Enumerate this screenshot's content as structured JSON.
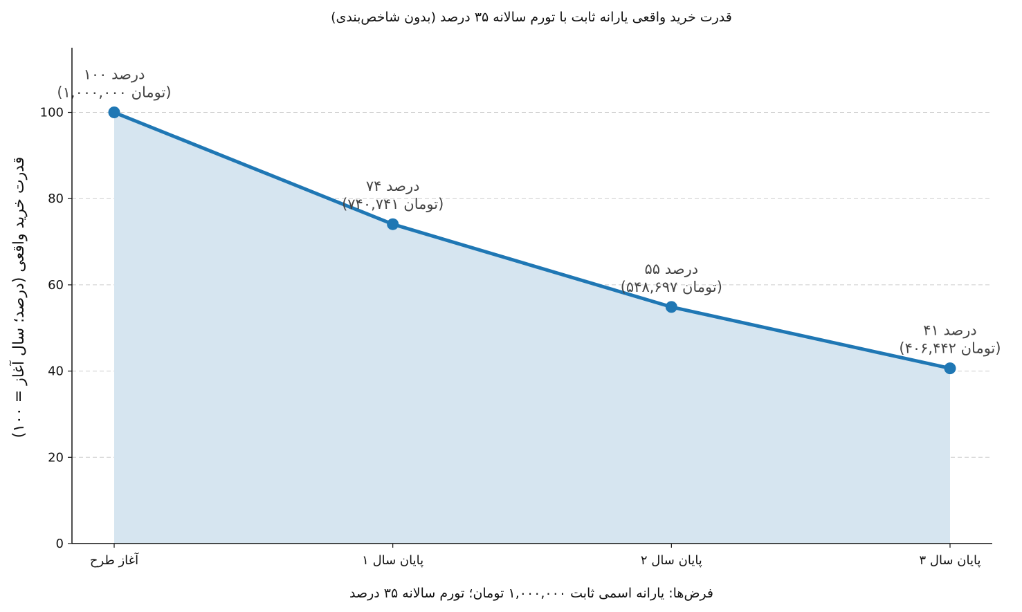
{
  "chart_data": {
    "type": "area",
    "title": "قدرت خرید واقعی یارانه ثابت با تورم سالانه ۳۵ درصد (بدون شاخص‌بندی)",
    "xlabel": "فرض‌ها: یارانه اسمی ثابت ۱,۰۰۰,۰۰۰ تومان؛ تورم سالانه ۳۵ درصد",
    "ylabel": "قدرت خرید واقعی (درصد؛ سال آغاز = ۱۰۰)",
    "categories": [
      "آغاز طرح",
      "پایان سال ۱",
      "پایان سال ۲",
      "پایان سال ۳"
    ],
    "values": [
      100,
      74.07,
      54.87,
      40.64
    ],
    "annotations": [
      {
        "line1": "۱۰۰ درصد",
        "line2": "(۱,۰۰۰,۰۰۰ تومان)"
      },
      {
        "line1": "۷۴ درصد",
        "line2": "(۷۴۰,۷۴۱ تومان)"
      },
      {
        "line1": "۵۵ درصد",
        "line2": "(۵۴۸,۶۹۷ تومان)"
      },
      {
        "line1": "۴۱ درصد",
        "line2": "(۴۰۶,۴۴۲ تومان)"
      }
    ],
    "ylim": [
      0,
      115
    ],
    "yticks": [
      0,
      20,
      40,
      60,
      80,
      100
    ],
    "grid": "horizontal dashed",
    "colors": {
      "line": "#1f77b4",
      "fill": "#d6e5f0",
      "grid": "#cccccc",
      "annotation": "#444444"
    }
  }
}
